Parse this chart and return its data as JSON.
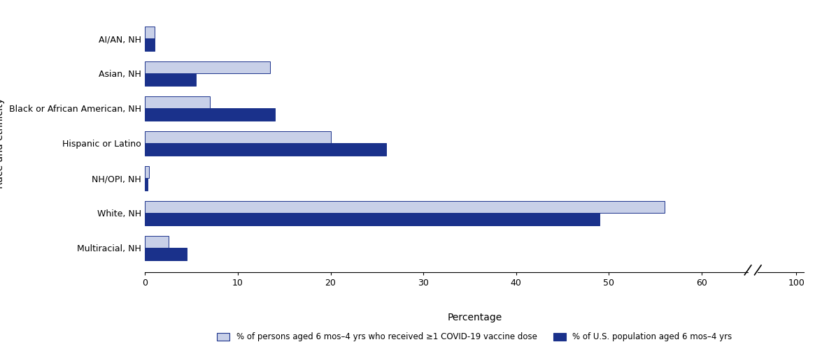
{
  "categories": [
    "AI/AN, NH",
    "Asian, NH",
    "Black or African American, NH",
    "Hispanic or Latino",
    "NH/OPI, NH",
    "White, NH",
    "Multiracial, NH"
  ],
  "pct_vaccinated": [
    1.0,
    13.5,
    7.0,
    20.0,
    0.4,
    56.0,
    2.5
  ],
  "pct_population": [
    1.0,
    5.5,
    14.0,
    26.0,
    0.3,
    49.0,
    4.5
  ],
  "color_vaccinated": "#c8d0e8",
  "color_population": "#1a318b",
  "bar_height": 0.35,
  "ylabel": "Race and ethnicity",
  "xlabel": "Percentage",
  "xticks_main": [
    0,
    10,
    20,
    30,
    40,
    50,
    60
  ],
  "xlim_main": 65,
  "legend_label_vaccinated": "% of persons aged 6 mos–4 yrs who received ≥1 COVID-19 vaccine dose",
  "legend_label_population": "% of U.S. population aged 6 mos–4 yrs",
  "edgecolor": "#1a318b"
}
